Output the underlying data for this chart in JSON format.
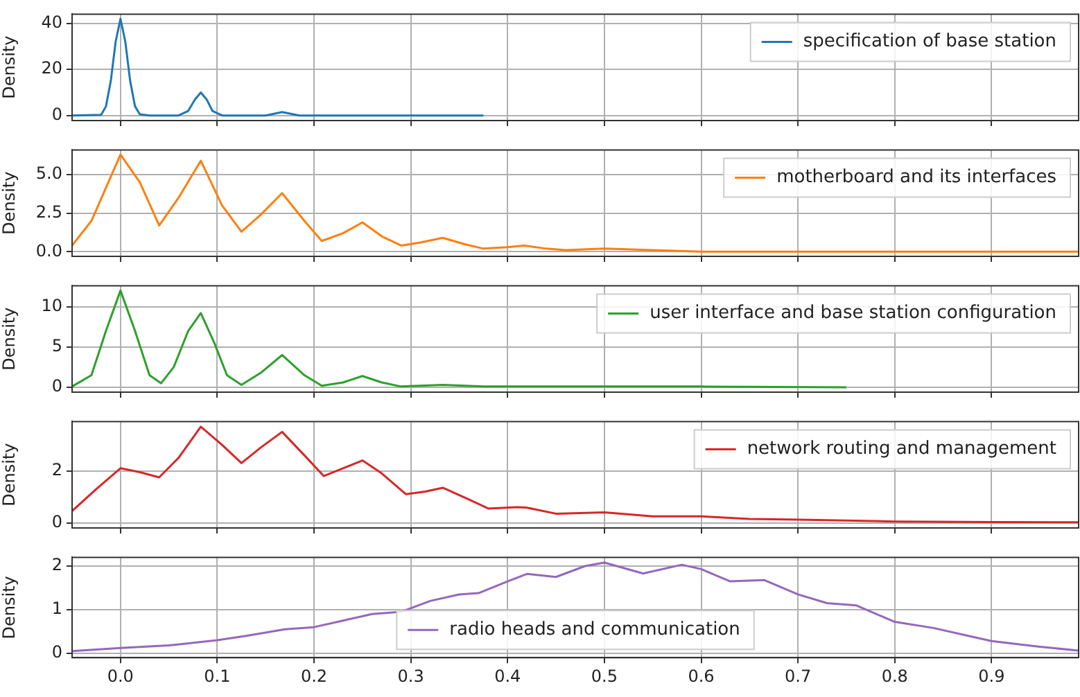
{
  "chart_data": [
    {
      "type": "line",
      "ylabel": "Density",
      "xlim": [
        -0.05,
        0.99
      ],
      "xticks": [
        {
          "value": 0,
          "label": null
        },
        {
          "value": 0.1,
          "label": null
        },
        {
          "value": 0.2,
          "label": null
        },
        {
          "value": 0.3,
          "label": null
        },
        {
          "value": 0.4,
          "label": null
        },
        {
          "value": 0.5,
          "label": null
        },
        {
          "value": 0.6,
          "label": null
        },
        {
          "value": 0.7,
          "label": null
        },
        {
          "value": 0.8,
          "label": null
        },
        {
          "value": 0.9,
          "label": null
        }
      ],
      "ylim": [
        -2.2,
        44
      ],
      "yticks": [
        0,
        20,
        40
      ],
      "grid": true,
      "legend": "top right",
      "tick_labels": "y",
      "series": [
        {
          "name": "specification of base station",
          "color": "#1f77b4",
          "x": [
            -0.05,
            -0.02,
            -0.015,
            -0.01,
            -0.005,
            0,
            0.005,
            0.01,
            0.015,
            0.02,
            0.03,
            0.06,
            0.07,
            0.077,
            0.083,
            0.089,
            0.095,
            0.105,
            0.15,
            0.167,
            0.185,
            0.375
          ],
          "values": [
            0,
            0.3,
            4,
            15,
            32,
            42,
            32,
            15,
            4,
            0.5,
            0,
            0,
            2,
            7,
            10,
            7,
            2,
            0,
            0,
            1.5,
            0,
            0
          ]
        }
      ]
    },
    {
      "type": "line",
      "ylabel": "Density",
      "xlim": [
        -0.05,
        0.99
      ],
      "xticks": [
        {
          "value": 0,
          "label": null
        },
        {
          "value": 0.1,
          "label": null
        },
        {
          "value": 0.2,
          "label": null
        },
        {
          "value": 0.3,
          "label": null
        },
        {
          "value": 0.4,
          "label": null
        },
        {
          "value": 0.5,
          "label": null
        },
        {
          "value": 0.6,
          "label": null
        },
        {
          "value": 0.7,
          "label": null
        },
        {
          "value": 0.8,
          "label": null
        },
        {
          "value": 0.9,
          "label": null
        }
      ],
      "ylim": [
        -0.3,
        6.6
      ],
      "yticks": [
        {
          "value": 0,
          "label": "0.0"
        },
        {
          "value": 2.5,
          "label": "2.5"
        },
        {
          "value": 5,
          "label": "5.0"
        }
      ],
      "grid": true,
      "legend": "top right",
      "tick_labels": "y",
      "series": [
        {
          "name": "motherboard and its interfaces",
          "color": "#ff7f0e",
          "x": [
            -0.05,
            -0.03,
            0,
            0.02,
            0.04,
            0.06,
            0.083,
            0.105,
            0.125,
            0.145,
            0.167,
            0.19,
            0.208,
            0.23,
            0.25,
            0.27,
            0.29,
            0.31,
            0.333,
            0.355,
            0.375,
            0.4,
            0.417,
            0.44,
            0.46,
            0.5,
            0.55,
            0.6,
            0.7,
            0.99
          ],
          "values": [
            0.4,
            2.0,
            6.3,
            4.5,
            1.7,
            3.5,
            5.9,
            3.0,
            1.3,
            2.4,
            3.8,
            2.0,
            0.7,
            1.2,
            1.9,
            1.0,
            0.4,
            0.6,
            0.9,
            0.5,
            0.2,
            0.3,
            0.4,
            0.2,
            0.1,
            0.2,
            0.1,
            0,
            0,
            0
          ]
        }
      ]
    },
    {
      "type": "line",
      "ylabel": "Density",
      "xlim": [
        -0.05,
        0.99
      ],
      "xticks": [
        {
          "value": 0,
          "label": null
        },
        {
          "value": 0.1,
          "label": null
        },
        {
          "value": 0.2,
          "label": null
        },
        {
          "value": 0.3,
          "label": null
        },
        {
          "value": 0.4,
          "label": null
        },
        {
          "value": 0.5,
          "label": null
        },
        {
          "value": 0.6,
          "label": null
        },
        {
          "value": 0.7,
          "label": null
        },
        {
          "value": 0.8,
          "label": null
        },
        {
          "value": 0.9,
          "label": null
        }
      ],
      "ylim": [
        -0.6,
        12.6
      ],
      "yticks": [
        0,
        5,
        10
      ],
      "grid": true,
      "legend": "top right",
      "tick_labels": "y",
      "series": [
        {
          "name": "user interface and base station configuration",
          "color": "#2ca02c",
          "x": [
            -0.05,
            -0.03,
            -0.015,
            0,
            0.015,
            0.03,
            0.042,
            0.055,
            0.07,
            0.083,
            0.097,
            0.11,
            0.125,
            0.145,
            0.167,
            0.19,
            0.208,
            0.23,
            0.25,
            0.27,
            0.29,
            0.333,
            0.375,
            0.5,
            0.6,
            0.75
          ],
          "values": [
            0.1,
            1.5,
            7,
            12,
            7,
            1.5,
            0.5,
            2.5,
            7,
            9.2,
            5.5,
            1.5,
            0.3,
            1.8,
            4,
            1.5,
            0.2,
            0.6,
            1.4,
            0.6,
            0.1,
            0.3,
            0.1,
            0.1,
            0.1,
            0
          ]
        }
      ]
    },
    {
      "type": "line",
      "ylabel": "Density",
      "xlim": [
        -0.05,
        0.99
      ],
      "xticks": [
        {
          "value": 0,
          "label": null
        },
        {
          "value": 0.1,
          "label": null
        },
        {
          "value": 0.2,
          "label": null
        },
        {
          "value": 0.3,
          "label": null
        },
        {
          "value": 0.4,
          "label": null
        },
        {
          "value": 0.5,
          "label": null
        },
        {
          "value": 0.6,
          "label": null
        },
        {
          "value": 0.7,
          "label": null
        },
        {
          "value": 0.8,
          "label": null
        },
        {
          "value": 0.9,
          "label": null
        }
      ],
      "ylim": [
        -0.2,
        3.9
      ],
      "yticks": [
        0,
        2
      ],
      "grid": true,
      "legend": "top right",
      "tick_labels": "y",
      "series": [
        {
          "name": "network routing and management",
          "color": "#d62728",
          "x": [
            -0.05,
            -0.025,
            0,
            0.02,
            0.04,
            0.06,
            0.083,
            0.105,
            0.125,
            0.145,
            0.167,
            0.19,
            0.21,
            0.23,
            0.25,
            0.27,
            0.295,
            0.315,
            0.333,
            0.36,
            0.38,
            0.41,
            0.42,
            0.45,
            0.5,
            0.55,
            0.6,
            0.65,
            0.7,
            0.8,
            0.9,
            0.99
          ],
          "values": [
            0.45,
            1.3,
            2.1,
            1.95,
            1.75,
            2.5,
            3.7,
            3.0,
            2.3,
            2.9,
            3.5,
            2.6,
            1.8,
            2.1,
            2.4,
            1.9,
            1.1,
            1.2,
            1.35,
            0.9,
            0.55,
            0.6,
            0.58,
            0.35,
            0.4,
            0.25,
            0.25,
            0.15,
            0.12,
            0.05,
            0.03,
            0.02
          ]
        }
      ]
    },
    {
      "type": "line",
      "ylabel": "Density",
      "xlim": [
        -0.05,
        0.99
      ],
      "xticks": [
        {
          "value": 0,
          "label": "0.0"
        },
        {
          "value": 0.1,
          "label": "0.1"
        },
        {
          "value": 0.2,
          "label": "0.2"
        },
        {
          "value": 0.3,
          "label": "0.3"
        },
        {
          "value": 0.4,
          "label": "0.4"
        },
        {
          "value": 0.5,
          "label": "0.5"
        },
        {
          "value": 0.6,
          "label": "0.6"
        },
        {
          "value": 0.7,
          "label": "0.7"
        },
        {
          "value": 0.8,
          "label": "0.8"
        },
        {
          "value": 0.9,
          "label": "0.9"
        }
      ],
      "ylim": [
        -0.1,
        2.2
      ],
      "yticks": [
        0,
        1,
        2
      ],
      "grid": true,
      "legend": "bottom",
      "series": [
        {
          "name": "radio heads and communication",
          "color": "#9467bd",
          "x": [
            -0.05,
            0,
            0.05,
            0.1,
            0.13,
            0.17,
            0.2,
            0.23,
            0.26,
            0.29,
            0.32,
            0.35,
            0.37,
            0.4,
            0.42,
            0.45,
            0.48,
            0.5,
            0.54,
            0.58,
            0.6,
            0.63,
            0.665,
            0.7,
            0.73,
            0.76,
            0.8,
            0.84,
            0.88,
            0.9,
            0.95,
            0.99
          ],
          "values": [
            0.05,
            0.12,
            0.18,
            0.3,
            0.4,
            0.55,
            0.6,
            0.75,
            0.9,
            0.95,
            1.2,
            1.35,
            1.38,
            1.65,
            1.82,
            1.75,
            2.0,
            2.08,
            1.83,
            2.03,
            1.93,
            1.65,
            1.68,
            1.35,
            1.15,
            1.1,
            0.72,
            0.58,
            0.38,
            0.28,
            0.15,
            0.06
          ]
        }
      ]
    }
  ]
}
